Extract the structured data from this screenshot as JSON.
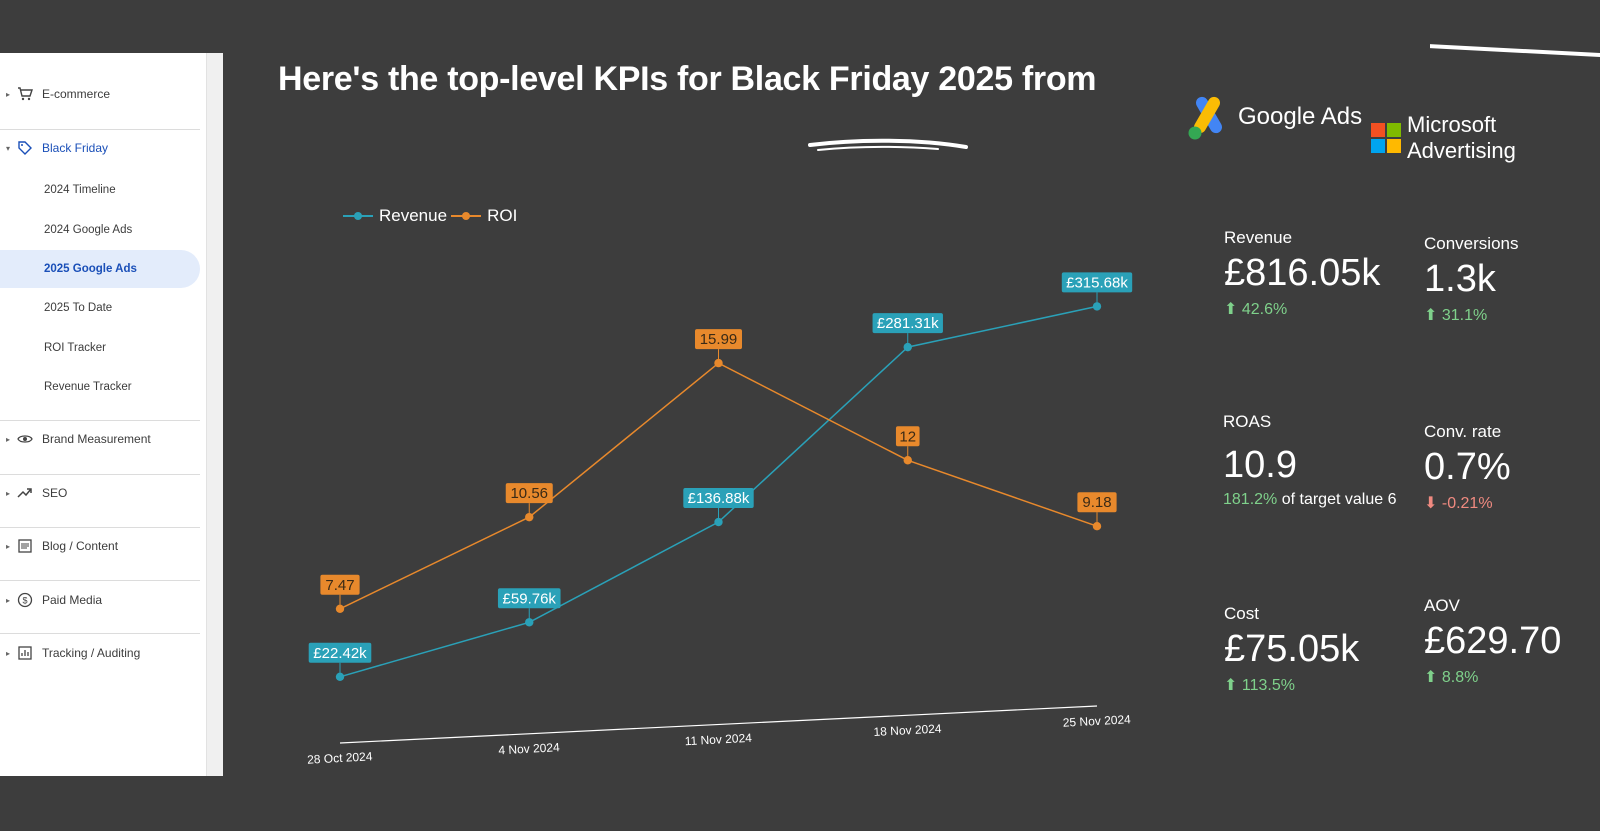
{
  "sidebar": {
    "sections": [
      {
        "label": "E-commerce",
        "icon": "cart-icon"
      },
      {
        "label": "Black Friday",
        "icon": "tag-icon"
      },
      {
        "label": "Brand Measurement",
        "icon": "eye-icon"
      },
      {
        "label": "SEO",
        "icon": "trending-up-icon"
      },
      {
        "label": "Blog / Content",
        "icon": "document-icon"
      },
      {
        "label": "Paid Media",
        "icon": "dollar-icon"
      },
      {
        "label": "Tracking / Auditing",
        "icon": "analytics-icon"
      }
    ],
    "subitems": [
      "2024 Timeline",
      "2024 Google Ads",
      "2025 Google Ads",
      "2025 To Date",
      "ROI Tracker",
      "Revenue Tracker"
    ],
    "selected": "2025 Google Ads"
  },
  "header": {
    "title": "Here's the top-level KPIs for Black Friday 2025 from",
    "brand1": "Google Ads",
    "brand2": "Microsoft Advertising"
  },
  "colors": {
    "revenue": "#2aa1b8",
    "roi": "#e8892c",
    "accent": "#1a4fb8",
    "up": "#7fd18b",
    "down": "#f08a80"
  },
  "chart_data": {
    "type": "line",
    "x": [
      "28 Oct 2024",
      "4 Nov 2024",
      "11 Nov 2024",
      "18 Nov 2024",
      "25 Nov 2024"
    ],
    "series": [
      {
        "name": "Revenue",
        "values": [
          22.42,
          59.76,
          136.88,
          281.31,
          315.68
        ],
        "labels": [
          "£22.42k",
          "£59.76k",
          "£136.88k",
          "£281.31k",
          "£315.68k"
        ]
      },
      {
        "name": "ROI",
        "values": [
          7.47,
          10.56,
          15.99,
          12,
          9.18
        ],
        "labels": [
          "7.47",
          "10.56",
          "15.99",
          "12",
          "9.18"
        ]
      }
    ],
    "legend": "top-left",
    "grid": false
  },
  "kpis": [
    {
      "label": "Revenue",
      "value": "£816.05k",
      "change": "42.6%",
      "direction": "up"
    },
    {
      "label": "Conversions",
      "value": "1.3k",
      "change": "31.1%",
      "direction": "up"
    },
    {
      "label": "ROAS",
      "value": "10.9",
      "change": "181.2%",
      "suffix": "of target value 6",
      "direction": "neutral"
    },
    {
      "label": "Conv. rate",
      "value": "0.7%",
      "change": "-0.21%",
      "direction": "down"
    },
    {
      "label": "Cost",
      "value": "£75.05k",
      "change": "113.5%",
      "direction": "up"
    },
    {
      "label": "AOV",
      "value": "£629.70",
      "change": "8.8%",
      "direction": "up"
    }
  ]
}
